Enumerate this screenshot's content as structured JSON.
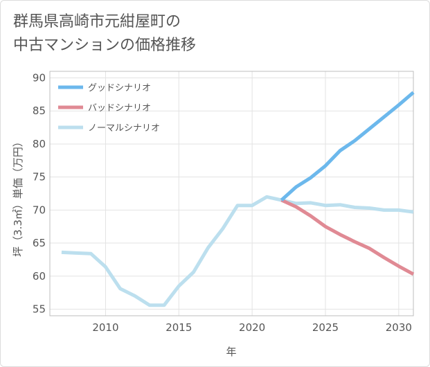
{
  "title_lines": [
    "群馬県高崎市元紺屋町の",
    "中古マンションの価格推移"
  ],
  "chart_data": {
    "type": "line",
    "title": "群馬県高崎市元紺屋町の中古マンションの価格推移",
    "xlabel": "年",
    "ylabel": "坪（3.3㎡）単価（万円）",
    "xlim": [
      2006.2,
      2031
    ],
    "ylim": [
      54,
      91
    ],
    "xticks": [
      2010,
      2015,
      2020,
      2025,
      2030
    ],
    "yticks": [
      55,
      60,
      65,
      70,
      75,
      80,
      85,
      90
    ],
    "grid": true,
    "legend_position": "top-left",
    "series": [
      {
        "name": "グッドシナリオ",
        "color": "#6cb8ec",
        "x": [
          2022,
          2023,
          2024,
          2025,
          2026,
          2027,
          2028,
          2029,
          2030,
          2031
        ],
        "values": [
          71.5,
          73.5,
          74.9,
          76.7,
          79.0,
          80.5,
          82.3,
          84.1,
          85.9,
          87.8
        ]
      },
      {
        "name": "バッドシナリオ",
        "color": "#e08a94",
        "x": [
          2022,
          2023,
          2024,
          2025,
          2026,
          2027,
          2028,
          2029,
          2030,
          2031
        ],
        "values": [
          71.5,
          70.5,
          69.1,
          67.5,
          66.3,
          65.2,
          64.2,
          62.8,
          61.5,
          60.3
        ]
      },
      {
        "name": "ノーマルシナリオ",
        "color": "#bcdfee",
        "x": [
          2007,
          2008,
          2009,
          2010,
          2011,
          2012,
          2013,
          2014,
          2015,
          2016,
          2017,
          2018,
          2019,
          2020,
          2021,
          2022,
          2023,
          2024,
          2025,
          2026,
          2027,
          2028,
          2029,
          2030,
          2031
        ],
        "values": [
          63.6,
          63.5,
          63.4,
          61.4,
          58.1,
          57.0,
          55.6,
          55.6,
          58.5,
          60.6,
          64.3,
          67.2,
          70.7,
          70.7,
          72.0,
          71.5,
          71.0,
          71.1,
          70.7,
          70.8,
          70.4,
          70.3,
          70.0,
          70.0,
          69.7
        ]
      }
    ]
  }
}
